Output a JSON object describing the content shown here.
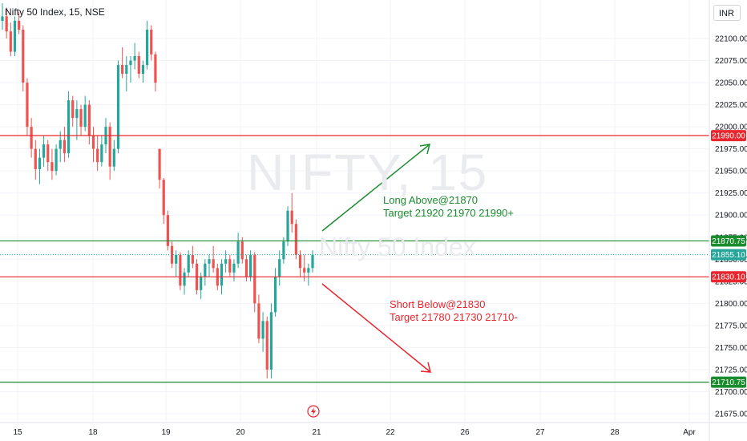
{
  "header": {
    "title": "Nifty 50 Index, 15, NSE",
    "currency": "INR"
  },
  "watermark": {
    "line1": "NIFTY, 15",
    "line2": "Nifty 50 Index"
  },
  "annotations": {
    "long": {
      "line1": "Long Above@21870",
      "line2": "Target 21920 21970 21990+"
    },
    "short": {
      "line1": "Short Below@21830",
      "line2": "Target 21780 21730 21710-"
    }
  },
  "colors": {
    "up": "#26a69a",
    "down": "#ef5350",
    "red_line": "#e8262e",
    "green_line": "#1a8c2e",
    "current": "#26a69a"
  },
  "chart_data": {
    "type": "candlestick",
    "ylim": [
      21665,
      22140
    ],
    "y_ticks": [
      22100,
      22075,
      22050,
      22025,
      22000,
      21975,
      21950,
      21925,
      21900,
      21875,
      21850,
      21825,
      21800,
      21775,
      21750,
      21725,
      21700,
      21675
    ],
    "y_tick_labels": [
      "22100.00",
      "22075.00",
      "22050.00",
      "22025.00",
      "22000.00",
      "21975.00",
      "21950.00",
      "21925.00",
      "21900.00",
      "21875.00",
      "21850.00",
      "21825.00",
      "21800.00",
      "21775.00",
      "21750.00",
      "21725.00",
      "21700.00",
      "21675.00"
    ],
    "x_ticks": [
      "15",
      "18",
      "19",
      "20",
      "21",
      "22",
      "26",
      "27",
      "28",
      "Apr"
    ],
    "levels": [
      {
        "value": 21990.0,
        "label": "21990.00",
        "color": "#e8262e"
      },
      {
        "value": 21870.75,
        "label": "21870.75",
        "color": "#1a8c2e"
      },
      {
        "value": 21830.1,
        "label": "21830.10",
        "color": "#e8262e"
      },
      {
        "value": 21710.75,
        "label": "21710.75",
        "color": "#1a8c2e"
      }
    ],
    "current_price": {
      "value": 21855.1,
      "label": "21855.10"
    },
    "candles": [
      [
        22120,
        22140,
        22110,
        22125
      ],
      [
        22125,
        22135,
        22100,
        22108
      ],
      [
        22108,
        22118,
        22080,
        22085
      ],
      [
        22085,
        22125,
        22080,
        22120
      ],
      [
        22120,
        22130,
        22105,
        22110
      ],
      [
        22110,
        22115,
        22040,
        22050
      ],
      [
        22050,
        22055,
        21990,
        22000
      ],
      [
        22000,
        22010,
        21965,
        21975
      ],
      [
        21975,
        21985,
        21940,
        21952
      ],
      [
        21952,
        21975,
        21935,
        21965
      ],
      [
        21965,
        21990,
        21955,
        21980
      ],
      [
        21980,
        21985,
        21950,
        21960
      ],
      [
        21960,
        21975,
        21940,
        21950
      ],
      [
        21950,
        21980,
        21945,
        21975
      ],
      [
        21975,
        21995,
        21960,
        21985
      ],
      [
        21985,
        22000,
        21960,
        21970
      ],
      [
        21970,
        22040,
        21965,
        22030
      ],
      [
        22030,
        22035,
        22000,
        22010
      ],
      [
        22010,
        22030,
        21985,
        22020
      ],
      [
        22020,
        22025,
        21990,
        22000
      ],
      [
        22000,
        22035,
        21995,
        22025
      ],
      [
        22025,
        22030,
        21980,
        21990
      ],
      [
        21990,
        22000,
        21960,
        21975
      ],
      [
        21975,
        21990,
        21950,
        21960
      ],
      [
        21960,
        21990,
        21955,
        21980
      ],
      [
        21980,
        22010,
        21970,
        22000
      ],
      [
        22000,
        22005,
        21940,
        21955
      ],
      [
        21955,
        21985,
        21950,
        21975
      ],
      [
        21975,
        22075,
        21970,
        22070
      ],
      [
        22070,
        22090,
        22055,
        22060
      ],
      [
        22060,
        22080,
        22040,
        22070
      ],
      [
        22070,
        22080,
        22050,
        22075
      ],
      [
        22075,
        22095,
        22065,
        22080
      ],
      [
        22080,
        22085,
        22055,
        22060
      ],
      [
        22060,
        22075,
        22050,
        22070
      ],
      [
        22070,
        22120,
        22065,
        22110
      ],
      [
        22110,
        22115,
        22075,
        22082
      ],
      [
        22082,
        22085,
        22040,
        22050
      ],
      [
        21975,
        21975,
        21930,
        21940
      ],
      [
        21940,
        21942,
        21890,
        21900
      ],
      [
        21900,
        21905,
        21860,
        21865
      ],
      [
        21865,
        21870,
        21840,
        21845
      ],
      [
        21845,
        21860,
        21830,
        21855
      ],
      [
        21855,
        21858,
        21815,
        21820
      ],
      [
        21820,
        21840,
        21810,
        21835
      ],
      [
        21835,
        21860,
        21830,
        21855
      ],
      [
        21855,
        21865,
        21840,
        21845
      ],
      [
        21845,
        21850,
        21810,
        21815
      ],
      [
        21815,
        21835,
        21805,
        21830
      ],
      [
        21830,
        21850,
        21820,
        21845
      ],
      [
        21845,
        21855,
        21830,
        21850
      ],
      [
        21850,
        21865,
        21835,
        21840
      ],
      [
        21840,
        21845,
        21815,
        21820
      ],
      [
        21820,
        21850,
        21810,
        21845
      ],
      [
        21845,
        21860,
        21835,
        21850
      ],
      [
        21850,
        21855,
        21830,
        21835
      ],
      [
        21835,
        21850,
        21825,
        21845
      ],
      [
        21845,
        21880,
        21840,
        21870
      ],
      [
        21870,
        21875,
        21845,
        21850
      ],
      [
        21850,
        21855,
        21825,
        21830
      ],
      [
        21830,
        21860,
        21825,
        21855
      ],
      [
        21855,
        21858,
        21790,
        21800
      ],
      [
        21800,
        21810,
        21755,
        21760
      ],
      [
        21760,
        21790,
        21745,
        21780
      ],
      [
        21780,
        21785,
        21715,
        21725
      ],
      [
        21725,
        21800,
        21715,
        21790
      ],
      [
        21790,
        21840,
        21785,
        21830
      ],
      [
        21830,
        21860,
        21820,
        21850
      ],
      [
        21850,
        21875,
        21845,
        21870
      ],
      [
        21870,
        21910,
        21865,
        21905
      ],
      [
        21905,
        21925,
        21880,
        21890
      ],
      [
        21890,
        21895,
        21850,
        21855
      ],
      [
        21855,
        21860,
        21830,
        21840
      ],
      [
        21840,
        21855,
        21825,
        21835
      ],
      [
        21835,
        21845,
        21820,
        21840
      ],
      [
        21840,
        21860,
        21835,
        21855
      ]
    ]
  }
}
